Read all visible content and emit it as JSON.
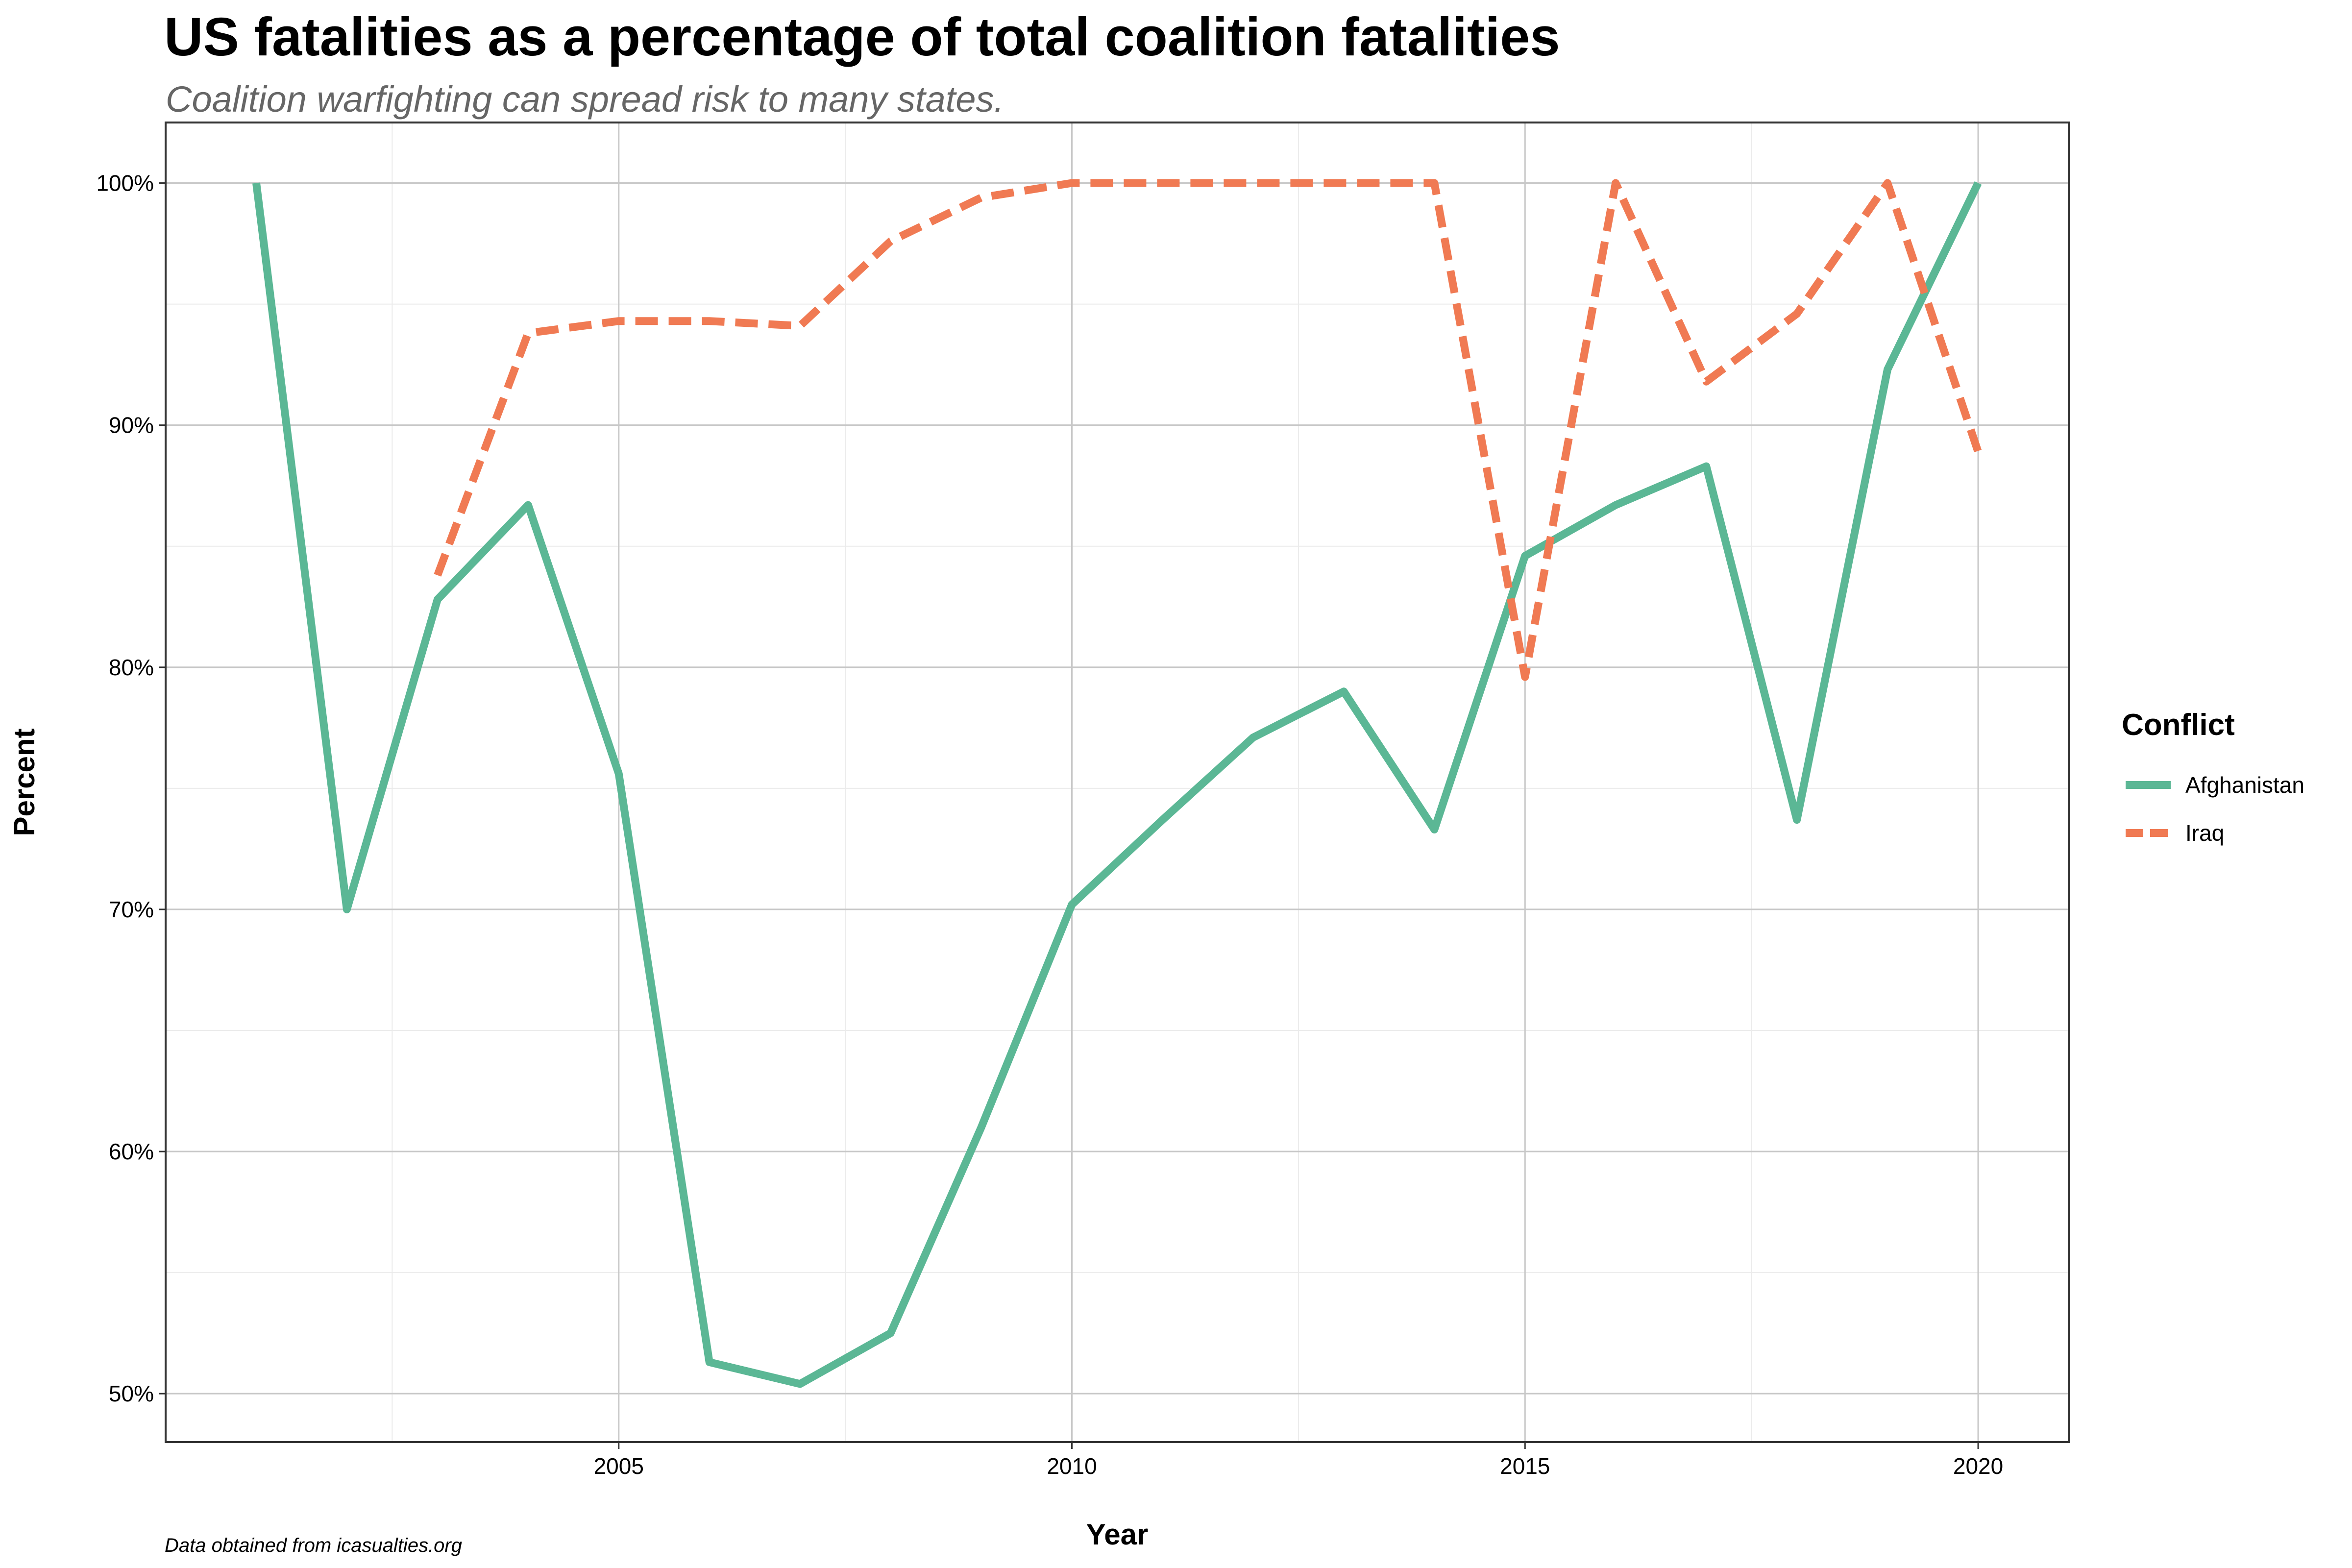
{
  "header": {
    "title": "US fatalities as a percentage of total coalition fatalities",
    "subtitle": "Coalition warfighting can spread risk to many states."
  },
  "caption": "Data obtained from icasualties.org",
  "chart_data": {
    "type": "line",
    "title": "US fatalities as a percentage of total coalition fatalities",
    "subtitle": "Coalition warfighting can spread risk to many states.",
    "xlabel": "Year",
    "ylabel": "Percent",
    "xlim": [
      2000,
      2021
    ],
    "ylim": [
      48,
      102.5
    ],
    "x_ticks": [
      2005,
      2010,
      2015,
      2020
    ],
    "x_tick_labels": [
      "2005",
      "2010",
      "2015",
      "2020"
    ],
    "y_ticks": [
      50,
      60,
      70,
      80,
      90,
      100
    ],
    "y_tick_labels": [
      "50%",
      "60%",
      "70%",
      "80%",
      "90%",
      "100%"
    ],
    "grid": true,
    "legend": {
      "title": "Conflict",
      "position": "right"
    },
    "series": [
      {
        "name": "Afghanistan",
        "color": "#5bb795",
        "dash": "solid",
        "x": [
          2001,
          2002,
          2003,
          2004,
          2005,
          2006,
          2007,
          2008,
          2009,
          2010,
          2011,
          2012,
          2013,
          2014,
          2015,
          2016,
          2017,
          2018,
          2019,
          2020
        ],
        "values": [
          100,
          70,
          82.8,
          86.7,
          75.6,
          51.3,
          50.4,
          52.5,
          61,
          70.2,
          73.7,
          77.1,
          79,
          73.3,
          84.6,
          86.7,
          88.3,
          73.7,
          92.3,
          100
        ]
      },
      {
        "name": "Iraq",
        "color": "#f07a53",
        "dash": "dashed",
        "x": [
          2003,
          2004,
          2005,
          2006,
          2007,
          2008,
          2009,
          2010,
          2011,
          2012,
          2013,
          2014,
          2015,
          2016,
          2017,
          2018,
          2019,
          2020
        ],
        "values": [
          83.8,
          93.8,
          94.3,
          94.3,
          94.1,
          97.6,
          99.4,
          100,
          100,
          100,
          100,
          100,
          79.6,
          100,
          91.8,
          94.6,
          100,
          88.9
        ]
      }
    ]
  }
}
